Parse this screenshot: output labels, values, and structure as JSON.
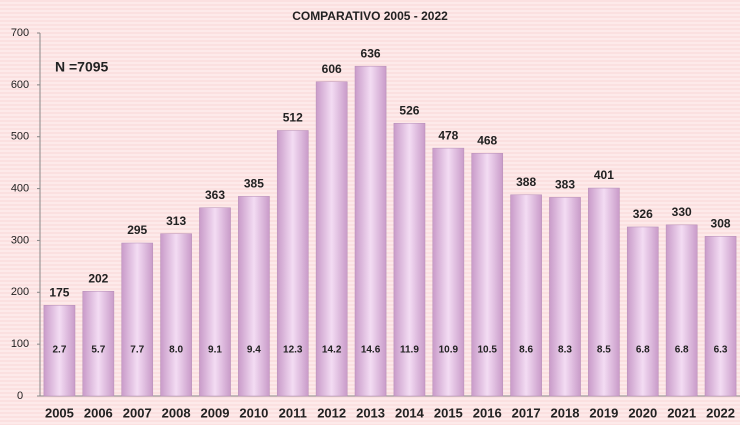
{
  "chart_data": {
    "type": "bar",
    "title": "COMPARATIVO 2005 - 2022",
    "annotation": "N =7095",
    "categories": [
      "2005",
      "2006",
      "2007",
      "2008",
      "2009",
      "2010",
      "2011",
      "2012",
      "2013",
      "2014",
      "2015",
      "2016",
      "2017",
      "2018",
      "2019",
      "2020",
      "2021",
      "2022"
    ],
    "values": [
      175,
      202,
      295,
      313,
      363,
      385,
      512,
      606,
      636,
      526,
      478,
      468,
      388,
      383,
      401,
      326,
      330,
      308
    ],
    "inner_values": [
      2.7,
      5.7,
      7.7,
      8.0,
      9.1,
      9.4,
      12.3,
      14.2,
      14.6,
      11.9,
      10.9,
      10.5,
      8.6,
      8.3,
      8.5,
      6.8,
      6.8,
      6.3
    ],
    "inner_value_labels": [
      "2.7",
      "5.7",
      "7.7",
      "8.0",
      "9.1",
      "9.4",
      "12.3",
      "14.2",
      "14.6",
      "11.9",
      "10.9",
      "10.5",
      "8.6",
      "8.3",
      "8.5",
      "6.8",
      "6.8",
      "6.3"
    ],
    "color": "#d9b3d9",
    "ylim": [
      0,
      700
    ],
    "yticks": [
      0,
      100,
      200,
      300,
      400,
      500,
      600,
      700
    ],
    "grid": false
  }
}
